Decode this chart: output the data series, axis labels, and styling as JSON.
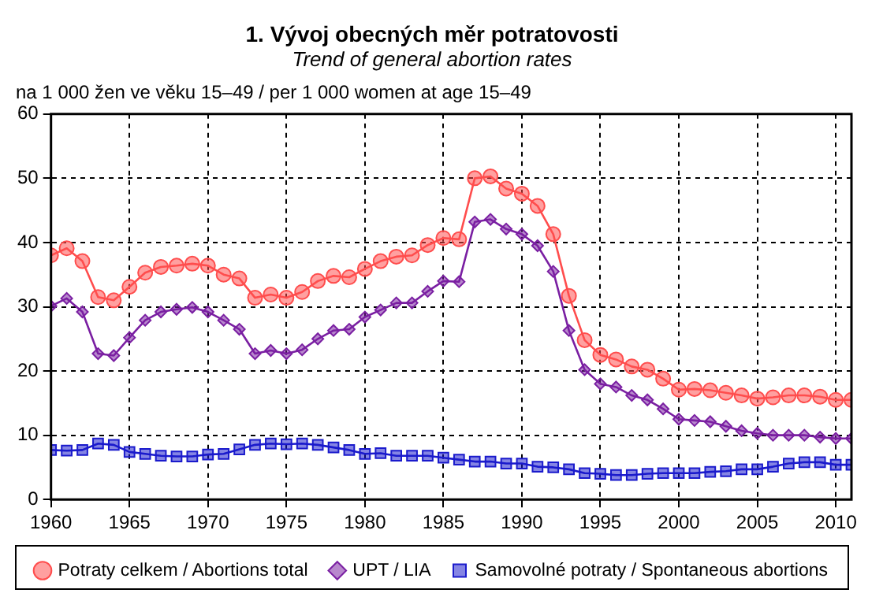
{
  "chart_data": {
    "type": "line",
    "title": "1. Vývoj obecných měr potratovosti",
    "subtitle": "Trend of general abortion rates",
    "ylabel": "na 1 000 žen ve věku 15–49 / per 1 000 women at age 15–49",
    "x": [
      1960,
      1961,
      1962,
      1963,
      1964,
      1965,
      1966,
      1967,
      1968,
      1969,
      1970,
      1971,
      1972,
      1973,
      1974,
      1975,
      1976,
      1977,
      1978,
      1979,
      1980,
      1981,
      1982,
      1983,
      1984,
      1985,
      1986,
      1987,
      1988,
      1989,
      1990,
      1991,
      1992,
      1993,
      1994,
      1995,
      1996,
      1997,
      1998,
      1999,
      2000,
      2001,
      2002,
      2003,
      2004,
      2005,
      2006,
      2007,
      2008,
      2009,
      2010,
      2011
    ],
    "series": [
      {
        "name": "Potraty celkem / Abortions total",
        "color": "#ff4d4d",
        "marker": "circle",
        "values": [
          38,
          39.1,
          37.1,
          31.5,
          31,
          33.1,
          35.3,
          36.2,
          36.4,
          36.7,
          36.4,
          35,
          34.4,
          31.4,
          31.9,
          31.4,
          32.3,
          34,
          34.8,
          34.6,
          35.9,
          37.1,
          37.8,
          38,
          39.6,
          40.7,
          40.5,
          50,
          50.3,
          48.4,
          47.6,
          45.7,
          41.3,
          31.7,
          24.8,
          22.5,
          21.8,
          20.7,
          20.2,
          18.8,
          17.1,
          17.2,
          17,
          16.6,
          16.2,
          15.7,
          15.9,
          16.2,
          16.2,
          16,
          15.5,
          15.5
        ]
      },
      {
        "name": "UPT / LIA",
        "color": "#7a1fa2",
        "marker": "diamond",
        "values": [
          30.1,
          31.3,
          29.2,
          22.7,
          22.4,
          25.2,
          27.9,
          29.2,
          29.6,
          29.9,
          29.2,
          27.9,
          26.5,
          22.7,
          23.2,
          22.7,
          23.3,
          25,
          26.3,
          26.5,
          28.4,
          29.5,
          30.6,
          30.6,
          32.4,
          34,
          33.9,
          43.2,
          43.6,
          42.1,
          41.3,
          39.5,
          35.5,
          26.3,
          20.2,
          18,
          17.5,
          16.2,
          15.5,
          14.1,
          12.5,
          12.3,
          12.1,
          11.4,
          10.7,
          10.3,
          10,
          10,
          10,
          9.7,
          9.5,
          9.5
        ]
      },
      {
        "name": "Samovolné potraty / Spontaneous abortions",
        "color": "#1a1acc",
        "marker": "square",
        "values": [
          7.7,
          7.6,
          7.7,
          8.7,
          8.5,
          7.4,
          7.1,
          6.8,
          6.7,
          6.7,
          7,
          7.1,
          7.8,
          8.5,
          8.7,
          8.6,
          8.7,
          8.5,
          8.1,
          7.7,
          7.1,
          7.2,
          6.8,
          6.8,
          6.8,
          6.5,
          6.2,
          5.9,
          5.9,
          5.6,
          5.6,
          5.1,
          5,
          4.7,
          4.1,
          4,
          3.8,
          3.8,
          4,
          4.1,
          4.1,
          4.1,
          4.3,
          4.4,
          4.7,
          4.7,
          5.1,
          5.6,
          5.8,
          5.8,
          5.4,
          5.4
        ]
      }
    ],
    "xlim": [
      1960,
      2011
    ],
    "xticks": [
      1960,
      1965,
      1970,
      1975,
      1980,
      1985,
      1990,
      1995,
      2000,
      2005,
      2010
    ],
    "ylim": [
      0,
      60
    ],
    "yticks": [
      0,
      10,
      20,
      30,
      40,
      50,
      60
    ],
    "grid": true,
    "legend": "bottom",
    "line_style": "solid"
  }
}
